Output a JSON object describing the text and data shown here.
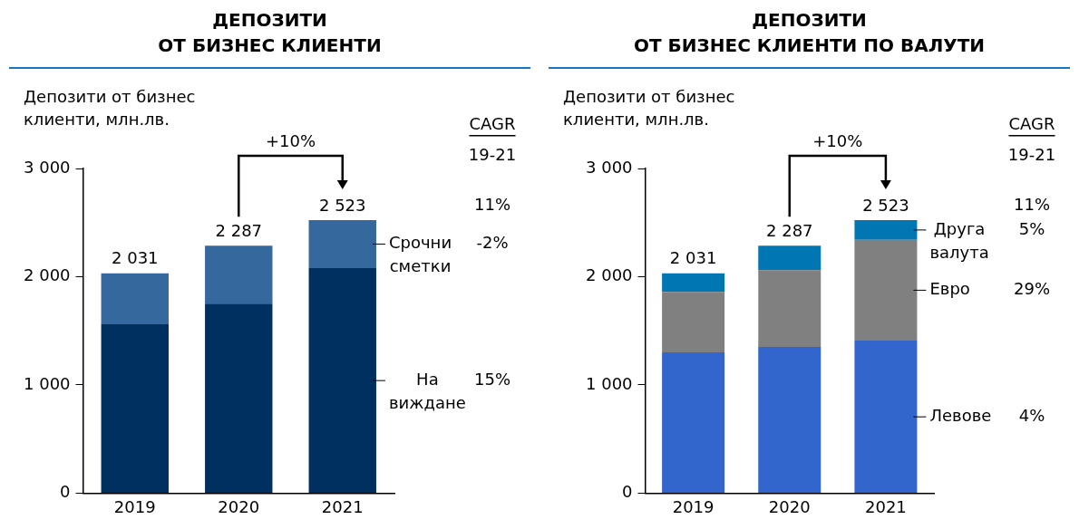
{
  "chart_data": [
    {
      "type": "bar",
      "title": "ДЕПОЗИТИ\nОТ БИЗНЕС КЛИЕНТИ",
      "ylabel": "Депозити от бизнес\nклиенти, млн.лв.",
      "categories": [
        "2019",
        "2020",
        "2021"
      ],
      "stacked": true,
      "series": [
        {
          "name": "На виждане",
          "color": "#00305f",
          "values": [
            1560,
            1750,
            2080
          ]
        },
        {
          "name": "Срочни сметки",
          "color": "#35689c",
          "values": [
            471,
            537,
            443
          ]
        }
      ],
      "totals": [
        "2 031",
        "2 287",
        "2 523"
      ],
      "ylim": [
        0,
        3000
      ],
      "yticks": [
        0,
        {
          "value": 1000,
          "label": "1 000"
        },
        {
          "value": 2000,
          "label": "2 000"
        },
        {
          "value": 3000,
          "label": "3 000"
        }
      ],
      "grid": false,
      "annotations": [
        "+10%",
        "CAGR",
        "19-21",
        "11%",
        "15%",
        "-2%"
      ]
    },
    {
      "type": "bar",
      "title": "ДЕПОЗИТИ\nОТ БИЗНЕС КЛИЕНТИ ПО ВАЛУТИ",
      "ylabel": "Депозити от бизнес\nклиенти, млн.лв.",
      "categories": [
        "2019",
        "2020",
        "2021"
      ],
      "stacked": true,
      "series": [
        {
          "name": "Левове",
          "color": "#3366cc",
          "values": [
            1300,
            1350,
            1410
          ]
        },
        {
          "name": "Евро",
          "color": "#808080",
          "values": [
            560,
            710,
            930
          ]
        },
        {
          "name": "Друга валута",
          "color": "#0077b3",
          "values": [
            171,
            227,
            183
          ]
        }
      ],
      "totals": [
        "2 031",
        "2 287",
        "2 523"
      ],
      "ylim": [
        0,
        3000
      ],
      "yticks": [
        0,
        {
          "value": 1000,
          "label": "1 000"
        },
        {
          "value": 2000,
          "label": "2 000"
        },
        {
          "value": 3000,
          "label": "3 000"
        }
      ],
      "grid": false,
      "annotations": [
        "+10%",
        "CAGR",
        "19-21",
        "11%",
        "4%",
        "29%",
        "5%"
      ]
    }
  ]
}
